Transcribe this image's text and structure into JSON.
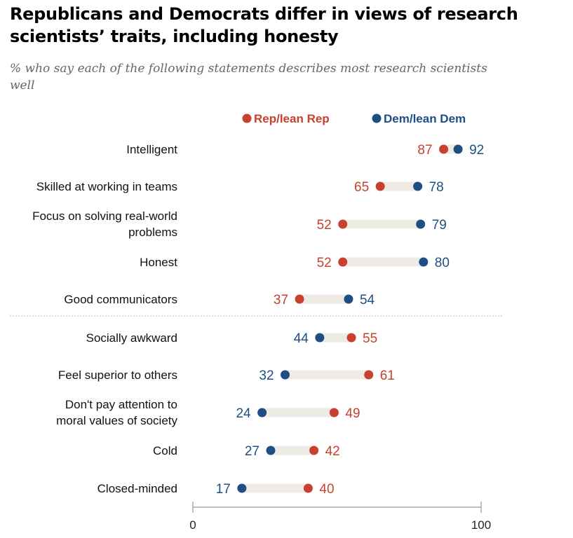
{
  "header": {
    "title": "Republicans and Democrats differ in views of research scientists’ traits, including honesty",
    "subtitle": "% who say each of the following statements describes most research scientists well"
  },
  "colors": {
    "rep": "#c8402e",
    "dem": "#1f4e84",
    "bar": "#eeebe4",
    "divider": "#999999",
    "axis": "#999999"
  },
  "chart_data": {
    "type": "dot",
    "title": "Republicans and Democrats differ in views of research scientists’ traits, including honesty",
    "subtitle": "% who say each of the following statements describes most research scientists well",
    "xlim": [
      0,
      100
    ],
    "x_ticks": [
      0,
      100
    ],
    "legend": {
      "placement": "top",
      "entries": [
        "Rep/lean Rep",
        "Dem/lean Dem"
      ]
    },
    "series": [
      {
        "name": "Rep/lean Rep",
        "key": "rep"
      },
      {
        "name": "Dem/lean Dem",
        "key": "dem"
      }
    ],
    "groups": [
      {
        "items": [
          {
            "label": [
              "Intelligent"
            ],
            "rep": 87,
            "dem": 92
          },
          {
            "label": [
              "Skilled at working in teams"
            ],
            "rep": 65,
            "dem": 78
          },
          {
            "label": [
              "Focus on solving real-world",
              "problems"
            ],
            "rep": 52,
            "dem": 79
          },
          {
            "label": [
              "Honest"
            ],
            "rep": 52,
            "dem": 80
          },
          {
            "label": [
              "Good communicators"
            ],
            "rep": 37,
            "dem": 54
          }
        ]
      },
      {
        "items": [
          {
            "label": [
              "Socially awkward"
            ],
            "rep": 55,
            "dem": 44
          },
          {
            "label": [
              "Feel superior to others"
            ],
            "rep": 61,
            "dem": 32
          },
          {
            "label": [
              "Don't pay attention to",
              "moral values of society"
            ],
            "rep": 49,
            "dem": 24
          },
          {
            "label": [
              "Cold"
            ],
            "rep": 42,
            "dem": 27
          },
          {
            "label": [
              "Closed-minded"
            ],
            "rep": 40,
            "dem": 17
          }
        ]
      }
    ]
  }
}
